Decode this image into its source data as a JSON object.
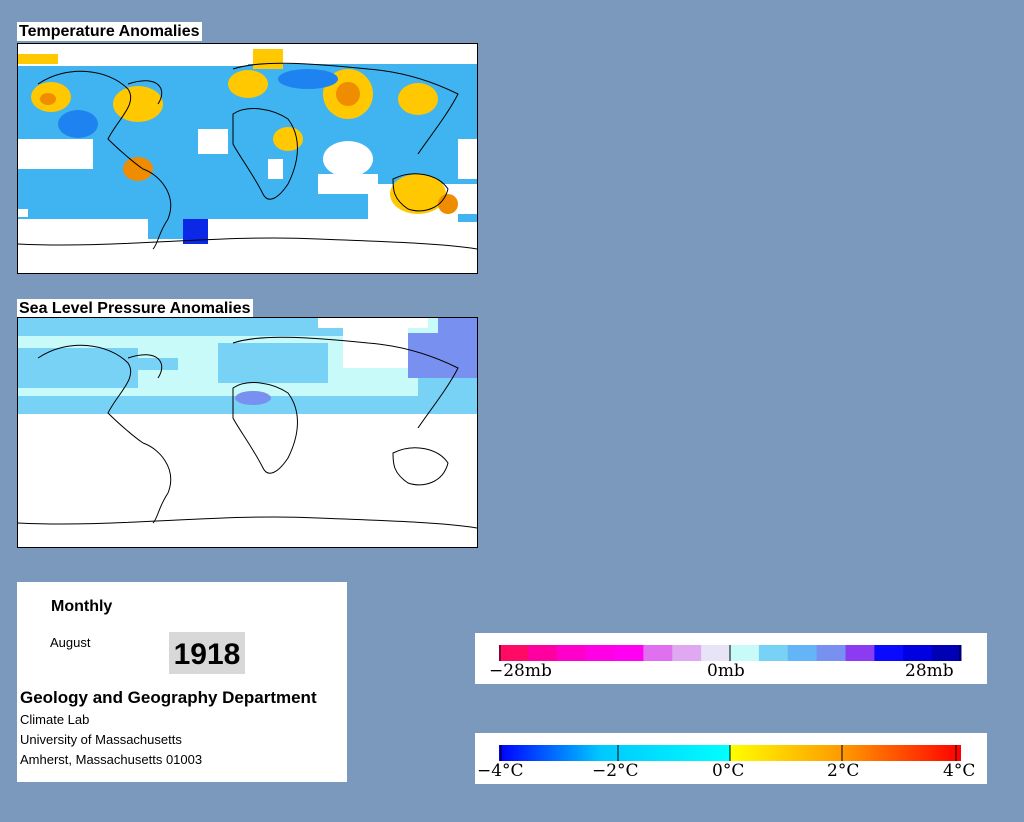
{
  "panels": {
    "temperature_title": "Temperature Anomalies",
    "pressure_title": "Sea Level Pressure Anomalies"
  },
  "info": {
    "period": "Monthly",
    "month": "August",
    "year": "1918",
    "department": "Geology and Geography Department",
    "lab": "Climate Lab",
    "university": "University of Massachusetts",
    "address": "Amherst, Massachusetts 01003"
  },
  "legends": {
    "pressure": {
      "labels": [
        "−28mb",
        "0mb",
        "28mb"
      ],
      "colors": [
        "#ff0a64",
        "#ff00a0",
        "#ff00cc",
        "#ff00e6",
        "#ff00f0",
        "#e070f0",
        "#e0a8f0",
        "#e8e4f8",
        "#c8fafa",
        "#78d2f5",
        "#64b4f8",
        "#7890f0",
        "#8c3cf0",
        "#0a0aff",
        "#0000e0",
        "#0000b4"
      ]
    },
    "temperature": {
      "labels": [
        "−4°C",
        "−2°C",
        "0°C",
        "2°C",
        "4°C"
      ],
      "gradient": [
        "#0000ff",
        "#00c8ff",
        "#00ffff",
        "#ffff00",
        "#ff9600",
        "#ff0000"
      ]
    }
  },
  "colors": {
    "background": "#7b99bd",
    "warm": "#ffc800",
    "hot": "#f08c00",
    "cool": "#40b4f0",
    "cold": "#0a28e6",
    "neutral_blue": "#c8f0fa"
  }
}
